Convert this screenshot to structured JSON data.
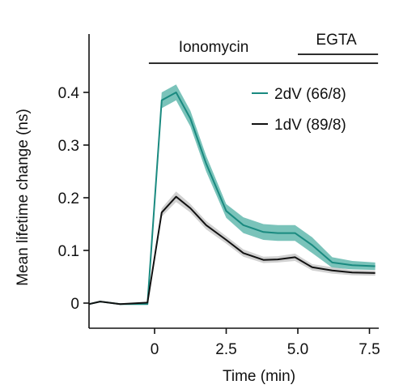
{
  "chart_data": {
    "type": "line",
    "title": "",
    "xlabel": "Time (min)",
    "ylabel": "Mean lifetime change (ns)",
    "xlim": [
      -2.3,
      7.8
    ],
    "ylim": [
      -0.05,
      0.5
    ],
    "xticks": [
      0,
      2.5,
      5.0,
      7.5
    ],
    "xtick_labels": [
      "0",
      "2.5",
      "5.0",
      "7.5"
    ],
    "yticks": [
      0,
      0.1,
      0.2,
      0.3,
      0.4
    ],
    "ytick_labels": [
      "0",
      "0.1",
      "0.2",
      "0.3",
      "0.4"
    ],
    "grid": false,
    "legend_position": "top-right",
    "annotations": [
      {
        "label": "Ionomycin",
        "x_start": -0.2,
        "x_end": 7.8
      },
      {
        "label": "EGTA",
        "x_start": 5.0,
        "x_end": 7.8
      }
    ],
    "series": [
      {
        "name": "2dV (66/8)",
        "color": "#1a8a80",
        "band_color": "#6cbcb3",
        "x": [
          -2.3,
          -1.9,
          -1.2,
          -0.25,
          0.25,
          0.75,
          1.25,
          1.8,
          2.5,
          3.1,
          3.8,
          4.3,
          4.9,
          5.5,
          6.2,
          6.9,
          7.7
        ],
        "y": [
          -0.002,
          0.003,
          -0.002,
          -0.002,
          0.385,
          0.4,
          0.35,
          0.265,
          0.175,
          0.148,
          0.135,
          0.133,
          0.133,
          0.11,
          0.077,
          0.072,
          0.07
        ],
        "error": [
          0,
          0,
          0,
          0,
          0.015,
          0.015,
          0.015,
          0.015,
          0.013,
          0.015,
          0.015,
          0.015,
          0.015,
          0.015,
          0.01,
          0.008,
          0.007
        ]
      },
      {
        "name": "1dV (89/8)",
        "color": "#111111",
        "band_color": "#c9c9c9",
        "x": [
          -2.3,
          -1.9,
          -1.2,
          -0.25,
          0.25,
          0.75,
          1.25,
          1.8,
          2.5,
          3.1,
          3.8,
          4.3,
          4.9,
          5.5,
          6.2,
          6.9,
          7.7
        ],
        "y": [
          -0.002,
          0.003,
          -0.002,
          0.001,
          0.172,
          0.202,
          0.18,
          0.148,
          0.12,
          0.095,
          0.082,
          0.083,
          0.087,
          0.068,
          0.062,
          0.058,
          0.057
        ],
        "error": [
          0,
          0,
          0,
          0,
          0.008,
          0.01,
          0.008,
          0.008,
          0.007,
          0.007,
          0.006,
          0.006,
          0.007,
          0.006,
          0.006,
          0.005,
          0.005
        ]
      }
    ]
  }
}
